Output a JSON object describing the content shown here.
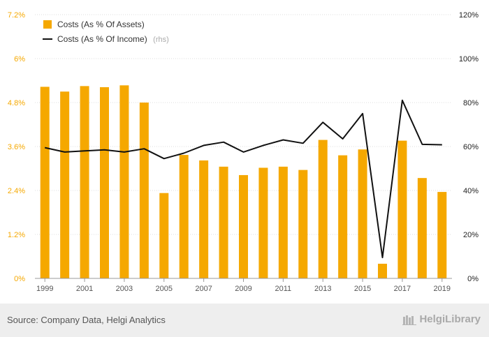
{
  "chart_data": {
    "type": "bar",
    "categories": [
      "1999",
      "2000",
      "2001",
      "2002",
      "2003",
      "2004",
      "2005",
      "2006",
      "2007",
      "2008",
      "2009",
      "2010",
      "2011",
      "2012",
      "2013",
      "2014",
      "2015",
      "2016",
      "2017",
      "2018",
      "2019"
    ],
    "x_tick_labels": [
      "1999",
      "2001",
      "2003",
      "2005",
      "2007",
      "2009",
      "2011",
      "2013",
      "2015",
      "2017",
      "2019"
    ],
    "series": [
      {
        "name": "Costs (As % Of Assets)",
        "type": "bar",
        "axis": "left",
        "color": "#f5a800",
        "values": [
          5.23,
          5.1,
          5.25,
          5.22,
          5.27,
          4.8,
          2.33,
          3.37,
          3.22,
          3.05,
          2.82,
          3.02,
          3.05,
          2.96,
          3.78,
          3.36,
          3.52,
          0.4,
          3.76,
          2.74,
          2.36
        ]
      },
      {
        "name": "Costs (As % Of Income)",
        "note": "(rhs)",
        "type": "line",
        "axis": "right",
        "color": "#111111",
        "values": [
          59.5,
          57.5,
          58,
          58.5,
          57.5,
          59,
          54.5,
          57,
          60.5,
          62,
          57.5,
          60.5,
          63,
          61.5,
          71,
          63.5,
          75,
          9.5,
          81,
          61,
          60.8
        ]
      }
    ],
    "y_left": {
      "min": 0,
      "max": 7.2,
      "ticks": [
        0,
        1.2,
        2.4,
        3.6,
        4.8,
        6,
        7.2
      ],
      "tick_labels": [
        "0%",
        "1.2%",
        "2.4%",
        "3.6%",
        "4.8%",
        "6%",
        "7.2%"
      ]
    },
    "y_right": {
      "min": 0,
      "max": 120,
      "ticks": [
        0,
        20,
        40,
        60,
        80,
        100,
        120
      ],
      "tick_labels": [
        "0%",
        "20%",
        "40%",
        "60%",
        "80%",
        "100%",
        "120%"
      ]
    },
    "legend_placement": "top-left"
  },
  "footer": {
    "source": "Source: Company Data, Helgi Analytics",
    "brand": "HelgiLibrary"
  }
}
